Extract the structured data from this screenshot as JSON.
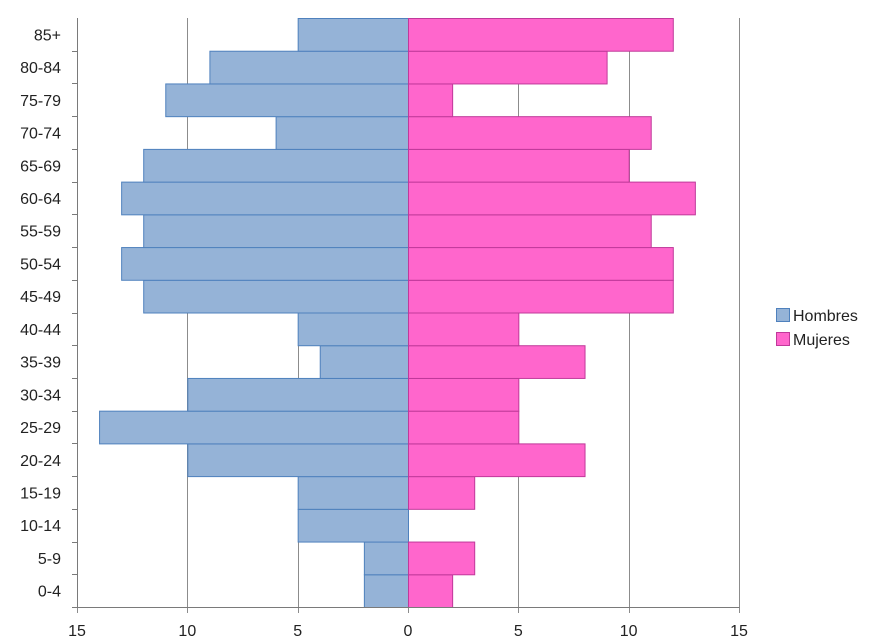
{
  "chart_data": {
    "type": "bar",
    "orientation": "horizontal",
    "title": "",
    "xlabel": "",
    "ylabel": "",
    "categories": [
      "0-4",
      "5-9",
      "10-14",
      "15-19",
      "20-24",
      "25-29",
      "30-34",
      "35-39",
      "40-44",
      "45-49",
      "50-54",
      "55-59",
      "60-64",
      "65-69",
      "70-74",
      "75-79",
      "80-84",
      "85+"
    ],
    "series": [
      {
        "name": "Hombres",
        "color": "#95b3d7",
        "stroke": "#4f81bd",
        "values": [
          -2,
          -2,
          -5,
          -5,
          -10,
          -14,
          -10,
          -4,
          -5,
          -12,
          -13,
          -12,
          -13,
          -12,
          -6,
          -11,
          -9,
          -5
        ]
      },
      {
        "name": "Mujeres",
        "color": "#ff66cc",
        "stroke": "#c0399a",
        "values": [
          2,
          3,
          0,
          3,
          8,
          5,
          5,
          8,
          5,
          12,
          12,
          11,
          13,
          10,
          11,
          2,
          9,
          12
        ]
      }
    ],
    "xlim": [
      -15,
      15
    ],
    "x_ticks": [
      {
        "value": -15,
        "label": "15"
      },
      {
        "value": -10,
        "label": "10"
      },
      {
        "value": -5,
        "label": "5"
      },
      {
        "value": 0,
        "label": "0"
      },
      {
        "value": 5,
        "label": "5"
      },
      {
        "value": 10,
        "label": "10"
      },
      {
        "value": 15,
        "label": "15"
      }
    ],
    "grid": true,
    "legend_position": "right"
  }
}
